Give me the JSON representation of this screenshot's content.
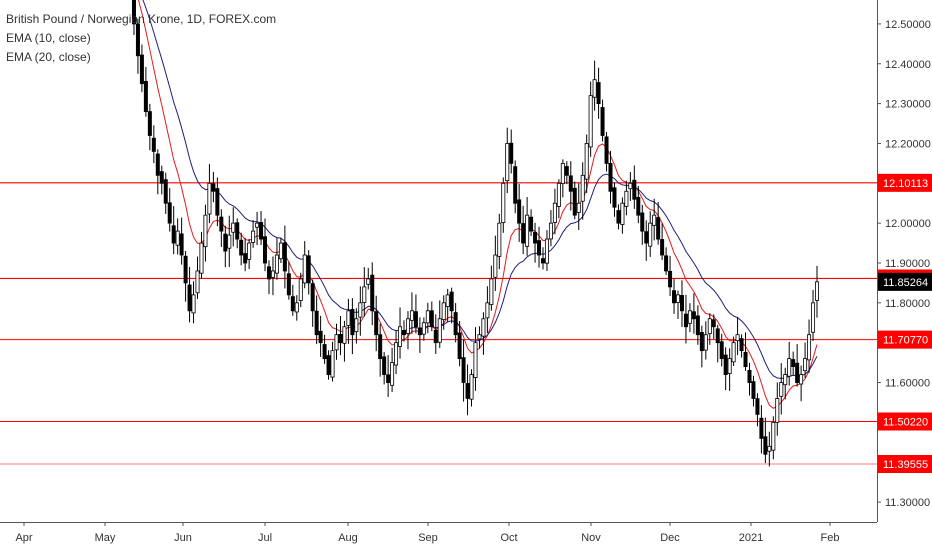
{
  "chart_data": {
    "type": "candlestick",
    "title": "British Pound / Norwegian Krone, 1D, FOREX.com",
    "indicators": [
      "EMA (10, close)",
      "EMA (20, close)"
    ],
    "indicator_colors": [
      "#e41a1c",
      "#1f1f7a"
    ],
    "ylim": [
      11.25,
      12.56
    ],
    "y_ticks": [
      "11.30000",
      "11.40000",
      "11.50000",
      "11.60000",
      "11.70000",
      "11.80000",
      "11.90000",
      "12.00000",
      "12.10000",
      "12.20000",
      "12.30000",
      "12.40000",
      "12.50000"
    ],
    "x_ticks": [
      "Apr",
      "May",
      "Jun",
      "Jul",
      "Aug",
      "Sep",
      "Oct",
      "Nov",
      "Dec",
      "2021",
      "Feb"
    ],
    "grid": false,
    "horizontal_levels": [
      {
        "value": 12.10113,
        "label": "12.10113"
      },
      {
        "value": 11.86113,
        "label": "11.86113"
      },
      {
        "value": 11.7077,
        "label": "11.70770"
      },
      {
        "value": 11.5022,
        "label": "11.50220"
      },
      {
        "value": 11.39555,
        "label": "11.39555"
      }
    ],
    "last_price": {
      "value": 11.85264,
      "label": "11.85264"
    },
    "level_color": "#ff0000",
    "closes": [
      12.62,
      12.5,
      12.42,
      12.35,
      12.28,
      12.22,
      12.18,
      12.12,
      12.1,
      12.05,
      12.0,
      11.95,
      11.98,
      11.92,
      11.85,
      11.78,
      11.82,
      11.88,
      11.95,
      12.02,
      12.1,
      12.08,
      12.02,
      11.98,
      11.93,
      11.97,
      12.0,
      11.96,
      11.92,
      11.9,
      11.95,
      11.98,
      12.0,
      11.96,
      11.9,
      11.86,
      11.88,
      11.92,
      11.95,
      11.88,
      11.82,
      11.78,
      11.8,
      11.86,
      11.92,
      11.85,
      11.78,
      11.72,
      11.7,
      11.66,
      11.62,
      11.68,
      11.72,
      11.7,
      11.74,
      11.78,
      11.72,
      11.76,
      11.8,
      11.84,
      11.86,
      11.78,
      11.72,
      11.66,
      11.62,
      11.6,
      11.65,
      11.7,
      11.74,
      11.72,
      11.76,
      11.78,
      11.74,
      11.72,
      11.75,
      11.78,
      11.74,
      11.7,
      11.76,
      11.8,
      11.82,
      11.78,
      11.72,
      11.66,
      11.6,
      11.56,
      11.62,
      11.7,
      11.72,
      11.76,
      11.8,
      11.86,
      11.92,
      12.0,
      12.1,
      12.2,
      12.15,
      12.05,
      12.0,
      11.95,
      12.02,
      11.98,
      11.95,
      11.92,
      11.9,
      11.96,
      12.0,
      12.05,
      12.1,
      12.15,
      12.12,
      12.08,
      12.02,
      12.05,
      12.12,
      12.2,
      12.32,
      12.36,
      12.3,
      12.22,
      12.15,
      12.08,
      12.04,
      12.0,
      12.05,
      12.08,
      12.1,
      12.06,
      12.02,
      11.98,
      11.95,
      12.0,
      12.02,
      11.96,
      11.92,
      11.88,
      11.84,
      11.8,
      11.82,
      11.78,
      11.74,
      11.78,
      11.76,
      11.72,
      11.68,
      11.72,
      11.76,
      11.74,
      11.7,
      11.66,
      11.62,
      11.66,
      11.7,
      11.72,
      11.68,
      11.64,
      11.6,
      11.56,
      11.52,
      11.46,
      11.42,
      11.44,
      11.5,
      11.56,
      11.6,
      11.62,
      11.66,
      11.64,
      11.6,
      11.62,
      11.66,
      11.72,
      11.8,
      11.85264
    ]
  }
}
